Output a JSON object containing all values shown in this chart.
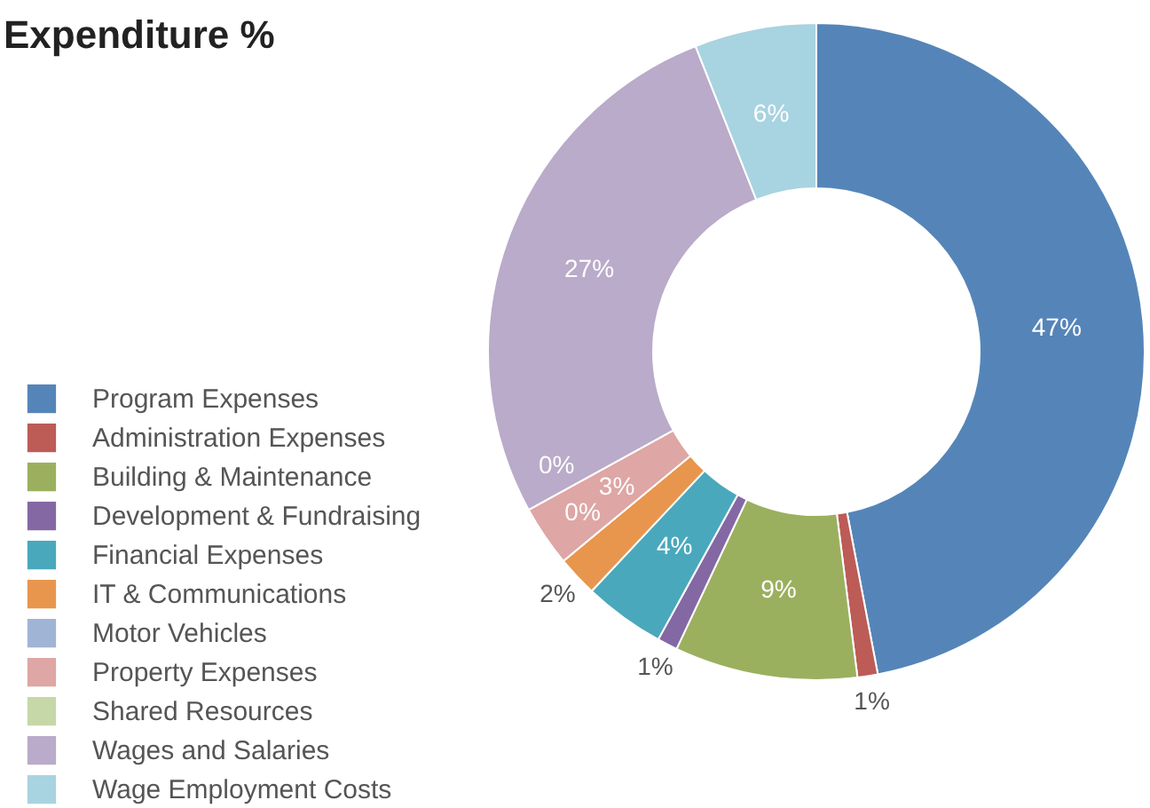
{
  "chart_data": {
    "type": "donut",
    "title": "Expenditure %",
    "categories": [
      "Program Expenses",
      "Administration Expenses",
      "Building & Maintenance",
      "Development & Fundraising",
      "Financial Expenses",
      "IT & Communications",
      "Motor Vehicles",
      "Property Expenses",
      "Shared Resources",
      "Wages and Salaries",
      "Wage Employment Costs"
    ],
    "values": [
      47,
      1,
      9,
      1,
      4,
      2,
      0,
      3,
      0,
      27,
      6
    ],
    "colors": [
      "#5585b8",
      "#bd5b57",
      "#9bb05e",
      "#8468a4",
      "#4aa8bc",
      "#e8964e",
      "#a0b4d6",
      "#dea6a4",
      "#c6d7a8",
      "#b9abc9",
      "#a8d3e1"
    ],
    "value_labels": [
      "47%",
      "1%",
      "9%",
      "1%",
      "4%",
      "2%",
      "0%",
      "3%",
      "0%",
      "27%",
      "6%"
    ],
    "legend": "left"
  }
}
